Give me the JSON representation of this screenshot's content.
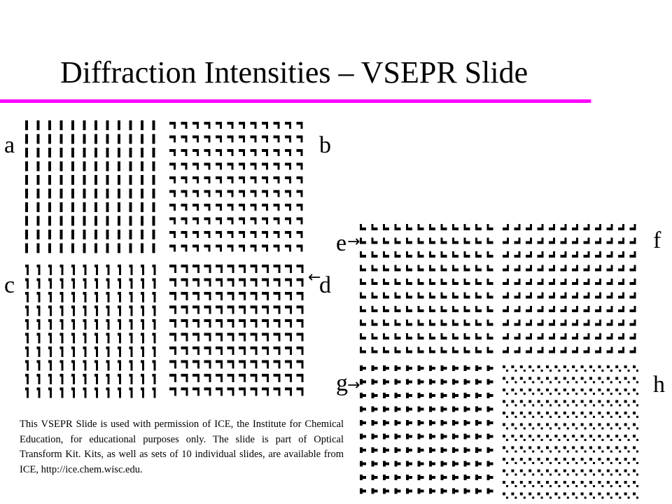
{
  "slide": {
    "title": "Diffraction Intensities – VSEPR Slide",
    "accent_color": "#ff00ff",
    "labels": {
      "a": "a",
      "b": "b",
      "c": "c",
      "d": "d",
      "e": "e",
      "f": "f",
      "g": "g",
      "h": "h"
    },
    "arrow_glyph": "→",
    "arrow_glyph_left": "←",
    "credit_text": "This VSEPR Slide is used with permission of ICE, the Institute for Chemical Education, for educational purposes only. The slide is part of Optical Transform Kit. Kits, as well as sets of 10 individual slides, are available from ICE, http://ice.chem.wisc.edu."
  }
}
